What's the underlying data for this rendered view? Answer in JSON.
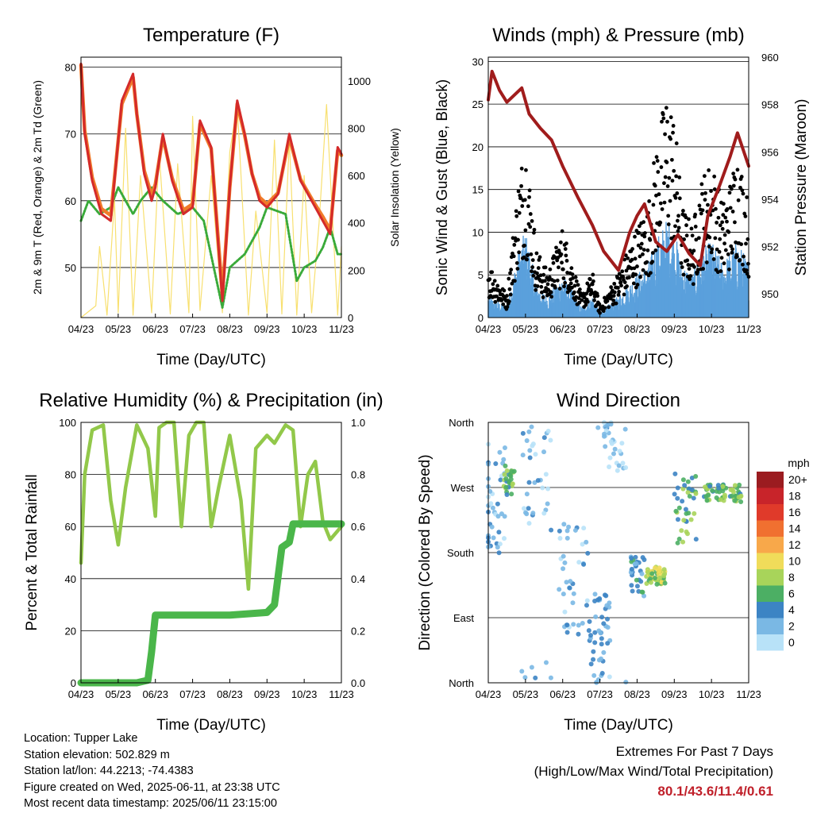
{
  "colors": {
    "temp_2m": "#d42a2a",
    "temp_9m": "#f07a2a",
    "dewpoint": "#3aaa3a",
    "solar": "#f8e070",
    "gust": "#000000",
    "wind": "#5aa0dc",
    "pressure": "#a01c1c",
    "rh": "#92c84a",
    "precip": "#4ab64a",
    "extremes": "#c0202a"
  },
  "chart_data": [
    {
      "id": "temperature",
      "type": "line",
      "title": "Temperature (F)",
      "xlabel": "Time (Day/UTC)",
      "ylabel": "2m & 9m T (Red, Orange) & 2m Td (Green)",
      "y2label": "Solar Insolation (Yellow)",
      "x_ticks": [
        "04/23",
        "05/23",
        "06/23",
        "07/23",
        "08/23",
        "09/23",
        "10/23",
        "11/23"
      ],
      "ylim": [
        42.5,
        81.5
      ],
      "y_ticks": [
        50,
        60,
        70,
        80
      ],
      "y2lim": [
        0,
        1100
      ],
      "y2_ticks": [
        0,
        200,
        400,
        600,
        800,
        1000
      ],
      "grid": true,
      "series": [
        {
          "name": "2m T",
          "axis": "left",
          "x": [
            0,
            0.1,
            0.3,
            0.55,
            0.8,
            1.1,
            1.4,
            1.5,
            1.7,
            1.9,
            2.0,
            2.2,
            2.45,
            2.75,
            3.0,
            3.2,
            3.5,
            3.8,
            4.0,
            4.2,
            4.4,
            4.6,
            4.8,
            5.0,
            5.3,
            5.6,
            5.9,
            6.2,
            6.5,
            6.7,
            6.9,
            7.0
          ],
          "y": [
            80.5,
            70,
            63,
            58,
            57,
            75,
            79,
            73,
            64,
            60,
            62,
            70,
            63,
            58,
            59,
            72,
            68,
            45,
            62,
            75,
            70,
            64,
            60,
            59,
            61,
            70,
            63,
            60,
            57,
            55,
            68,
            67
          ]
        },
        {
          "name": "9m T",
          "axis": "left",
          "x": [
            0,
            0.1,
            0.3,
            0.55,
            0.8,
            1.1,
            1.4,
            1.5,
            1.7,
            1.9,
            2.0,
            2.2,
            2.45,
            2.75,
            3.0,
            3.2,
            3.5,
            3.8,
            4.0,
            4.2,
            4.4,
            4.6,
            4.8,
            5.0,
            5.3,
            5.6,
            5.9,
            6.2,
            6.5,
            6.7,
            6.9,
            7.0
          ],
          "y": [
            80.3,
            70.5,
            63.5,
            58.8,
            57.8,
            74.5,
            78.5,
            73,
            64.5,
            60.8,
            62.5,
            69.5,
            63.4,
            58.6,
            59.5,
            71.5,
            67.8,
            46,
            62,
            74.5,
            69.8,
            64,
            60.5,
            59.5,
            61.2,
            69.5,
            63.2,
            60.3,
            57.6,
            55.6,
            67.5,
            66.8
          ]
        },
        {
          "name": "2m Td",
          "axis": "left",
          "x": [
            0,
            0.2,
            0.5,
            0.8,
            1.0,
            1.1,
            1.4,
            1.6,
            1.9,
            2.2,
            2.6,
            3.0,
            3.3,
            3.8,
            4.0,
            4.4,
            4.8,
            5.0,
            5.5,
            5.8,
            6.0,
            6.3,
            6.5,
            6.7,
            6.9,
            7.0
          ],
          "y": [
            57,
            60,
            58,
            59,
            62,
            61,
            58,
            60,
            62,
            60,
            58,
            59,
            57,
            44,
            50,
            52,
            56,
            59,
            58,
            48,
            50,
            51,
            53,
            56,
            52,
            52
          ]
        },
        {
          "name": "Solar",
          "axis": "right",
          "x": [
            0,
            0.4,
            0.5,
            0.7,
            0.9,
            1.0,
            1.2,
            1.4,
            1.6,
            1.9,
            2.1,
            2.4,
            2.6,
            2.9,
            3.0,
            3.2,
            3.5,
            3.8,
            4.0,
            4.2,
            4.5,
            4.7,
            5.0,
            5.2,
            5.4,
            5.6,
            5.8,
            6.0,
            6.2,
            6.4,
            6.6,
            6.9,
            7.0
          ],
          "y": [
            0,
            50,
            300,
            10,
            500,
            20,
            800,
            10,
            600,
            20,
            700,
            15,
            650,
            20,
            850,
            30,
            600,
            20,
            700,
            900,
            10,
            450,
            20,
            750,
            15,
            750,
            10,
            600,
            20,
            400,
            900,
            10,
            300
          ]
        }
      ]
    },
    {
      "id": "winds",
      "type": "scatter",
      "title": "Winds (mph) & Pressure (mb)",
      "xlabel": "Time (Day/UTC)",
      "ylabel": "Sonic Wind & Gust (Blue, Black)",
      "y2label": "Station Pressure (Maroon)",
      "x_ticks": [
        "04/23",
        "05/23",
        "06/23",
        "07/23",
        "08/23",
        "09/23",
        "10/23",
        "11/23"
      ],
      "ylim": [
        0,
        30.5
      ],
      "y_ticks": [
        0,
        5,
        10,
        15,
        20,
        25,
        30
      ],
      "y2lim": [
        949.0,
        960.0
      ],
      "y2_ticks": [
        950,
        952,
        954,
        956,
        958,
        960
      ],
      "grid": true,
      "series": [
        {
          "name": "Gust",
          "axis": "left",
          "x": [
            0,
            0.5,
            0.8,
            1.0,
            1.3,
            1.6,
            2.0,
            2.5,
            2.8,
            3.0,
            3.5,
            4.0,
            4.3,
            4.5,
            4.8,
            5.0,
            5.2,
            5.5,
            5.7,
            6.0,
            6.3,
            6.5,
            6.7,
            7.0
          ],
          "y": [
            5,
            2,
            12,
            16,
            6,
            4,
            8,
            2,
            4,
            1,
            4,
            8,
            10,
            15,
            20,
            18,
            10,
            8,
            12,
            14,
            10,
            12,
            15,
            10
          ]
        },
        {
          "name": "Wind",
          "axis": "left",
          "x": [
            0,
            0.5,
            0.8,
            1.0,
            1.3,
            1.6,
            2.0,
            2.5,
            2.8,
            3.0,
            3.5,
            4.0,
            4.3,
            4.5,
            4.8,
            5.0,
            5.2,
            5.5,
            5.7,
            6.0,
            6.3,
            6.5,
            6.7,
            7.0
          ],
          "y": [
            2,
            1,
            6,
            8,
            3,
            2,
            4,
            1,
            2,
            0.5,
            2,
            4,
            5,
            7,
            9,
            8,
            5,
            4,
            6,
            7,
            5,
            6,
            7,
            5
          ]
        },
        {
          "name": "Pressure",
          "axis": "right",
          "x": [
            0,
            0.1,
            0.3,
            0.5,
            0.9,
            1.1,
            1.4,
            1.7,
            2.0,
            2.4,
            2.8,
            3.1,
            3.5,
            3.8,
            4.0,
            4.2,
            4.5,
            4.8,
            5.1,
            5.4,
            5.7,
            5.9,
            6.2,
            6.5,
            6.7,
            7.0
          ],
          "y": [
            958.2,
            959.4,
            958.6,
            958.1,
            958.7,
            957.6,
            957.0,
            956.5,
            955.4,
            954.1,
            952.9,
            951.8,
            951.0,
            952.6,
            953.3,
            953.8,
            952.2,
            951.8,
            952.5,
            951.7,
            951.2,
            953.3,
            954.5,
            955.8,
            956.8,
            955.4
          ]
        }
      ]
    },
    {
      "id": "humidity",
      "type": "line",
      "title": "Relative Humidity (%) & Precipitation (in)",
      "xlabel": "Time (Day/UTC)",
      "ylabel": "Percent & Total Rainfall",
      "x_ticks": [
        "04/23",
        "05/23",
        "06/23",
        "07/23",
        "08/23",
        "09/23",
        "10/23",
        "11/23"
      ],
      "ylim": [
        0,
        100
      ],
      "y_ticks": [
        0,
        20,
        40,
        60,
        80,
        100
      ],
      "y2lim": [
        0,
        1.0
      ],
      "y2_ticks": [
        "0.0",
        "0.2",
        "0.4",
        "0.6",
        "0.8",
        "1.0"
      ],
      "grid": true,
      "series": [
        {
          "name": "RH",
          "axis": "left",
          "x": [
            0,
            0.1,
            0.3,
            0.6,
            0.8,
            1.0,
            1.2,
            1.5,
            1.8,
            2.0,
            2.1,
            2.3,
            2.5,
            2.7,
            2.9,
            3.1,
            3.3,
            3.5,
            3.7,
            4.0,
            4.3,
            4.5,
            4.7,
            5.0,
            5.2,
            5.5,
            5.7,
            5.9,
            6.1,
            6.3,
            6.5,
            6.7,
            7.0
          ],
          "y": [
            46,
            80,
            97,
            99,
            70,
            53,
            75,
            99,
            90,
            64,
            98,
            100,
            100,
            60,
            95,
            100,
            100,
            60,
            75,
            95,
            70,
            36,
            90,
            95,
            92,
            99,
            97,
            60,
            80,
            85,
            62,
            55,
            60
          ]
        },
        {
          "name": "Total Rainfall",
          "axis": "right",
          "x": [
            0,
            1.5,
            1.8,
            1.9,
            2.0,
            4.0,
            5.0,
            5.2,
            5.4,
            5.6,
            5.7,
            7.0
          ],
          "y": [
            0.0,
            0.0,
            0.01,
            0.12,
            0.26,
            0.26,
            0.27,
            0.3,
            0.52,
            0.54,
            0.61,
            0.61
          ]
        }
      ]
    },
    {
      "id": "direction",
      "type": "scatter",
      "title": "Wind Direction",
      "xlabel": "Time (Day/UTC)",
      "ylabel": "Direction (Colored By Speed)",
      "x_ticks": [
        "04/23",
        "05/23",
        "06/23",
        "07/23",
        "08/23",
        "09/23",
        "10/23",
        "11/23"
      ],
      "y_ticks": [
        "North",
        "East",
        "South",
        "West",
        "North"
      ],
      "legend_title": "mph",
      "legend": [
        {
          "label": "20+",
          "color": "#9b1c20"
        },
        {
          "label": "18",
          "color": "#c8242a"
        },
        {
          "label": "16",
          "color": "#e03a2a"
        },
        {
          "label": "14",
          "color": "#f07030"
        },
        {
          "label": "12",
          "color": "#f8a84a"
        },
        {
          "label": "10",
          "color": "#f0dc5a"
        },
        {
          "label": "8",
          "color": "#a8d45a"
        },
        {
          "label": "6",
          "color": "#4caf64"
        },
        {
          "label": "4",
          "color": "#3c84c4"
        },
        {
          "label": "2",
          "color": "#7ab8e4"
        },
        {
          "label": "0",
          "color": "#b8e2f8"
        }
      ],
      "legend_placement": "right",
      "clusters": [
        {
          "x": 0.15,
          "dir": 250,
          "speed": 2,
          "n": 40,
          "spread": [
            0.3,
            80
          ]
        },
        {
          "x": 0.55,
          "dir": 280,
          "speed": 6,
          "n": 30,
          "spread": [
            0.15,
            20
          ]
        },
        {
          "x": 1.3,
          "dir": 300,
          "speed": 2,
          "n": 40,
          "spread": [
            0.4,
            90
          ]
        },
        {
          "x": 2.3,
          "dir": 140,
          "speed": 2,
          "n": 40,
          "spread": [
            0.4,
            80
          ]
        },
        {
          "x": 3.0,
          "dir": 60,
          "speed": 3,
          "n": 50,
          "spread": [
            0.3,
            70
          ]
        },
        {
          "x": 3.4,
          "dir": 330,
          "speed": 1,
          "n": 30,
          "spread": [
            0.3,
            40
          ]
        },
        {
          "x": 4.0,
          "dir": 150,
          "speed": 4,
          "n": 30,
          "spread": [
            0.2,
            30
          ]
        },
        {
          "x": 4.5,
          "dir": 148,
          "speed": 8,
          "n": 50,
          "spread": [
            0.25,
            12
          ]
        },
        {
          "x": 5.3,
          "dir": 240,
          "speed": 6,
          "n": 40,
          "spread": [
            0.3,
            50
          ]
        },
        {
          "x": 6.3,
          "dir": 262,
          "speed": 6,
          "n": 60,
          "spread": [
            0.5,
            12
          ]
        }
      ]
    }
  ],
  "info": {
    "location": "Location: Tupper Lake",
    "elevation": "Station elevation: 502.829 m",
    "latlon": "Station lat/lon: 44.2213; -74.4383",
    "created": "Figure created on Wed, 2025-06-11, at 23:38 UTC",
    "recent": "Most recent data timestamp: 2025/06/11 23:15:00"
  },
  "extremes": {
    "title": "Extremes For Past 7 Days",
    "subtitle": "(High/Low/Max Wind/Total Precipitation)",
    "values": "80.1/43.6/11.4/0.61"
  }
}
